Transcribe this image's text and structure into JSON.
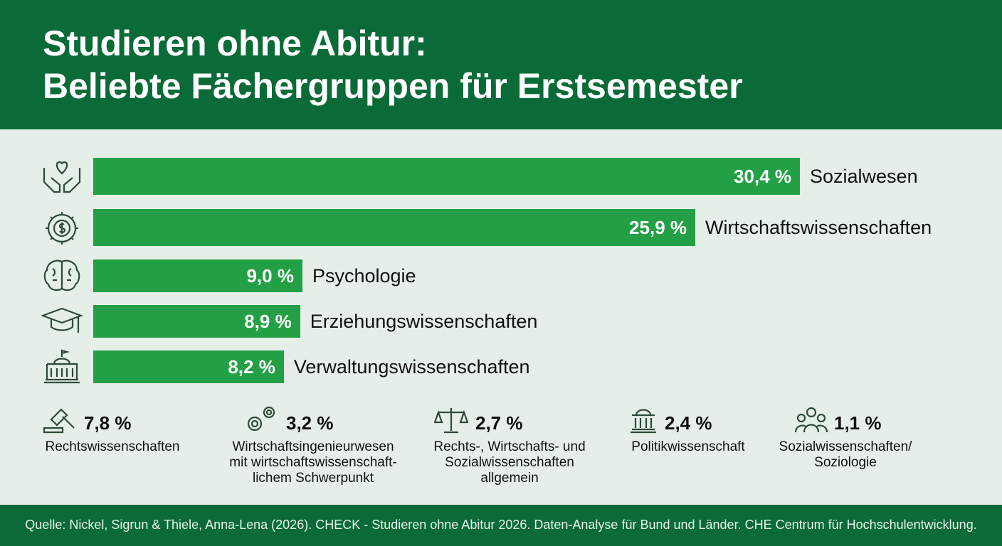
{
  "chart_data": [
    {
      "type": "bar",
      "title": [
        "Studieren ohne Abitur:",
        "Beliebte Fächergruppen für Erstsemester"
      ],
      "categories": [
        "Sozialwesen",
        "Wirtschaftswissenschaften",
        "Psychologie",
        "Erziehungswissenschaften",
        "Verwaltungswissenschaften"
      ],
      "values": [
        30.4,
        25.9,
        9.0,
        8.9,
        8.2
      ],
      "value_labels": [
        "30,4 %",
        "25,9 %",
        "9,0 %",
        "8,9 %",
        "8,2 %"
      ],
      "color": "#23a046",
      "source": "Quelle: Nickel, Sigrun & Thiele, Anna-Lena (2026). CHECK - Studieren ohne Abitur 2026. Daten-Analyse für Bund und Länder. CHE Centrum für Hochschulentwicklung."
    },
    {
      "type": "stat",
      "categories": [
        "Rechtswissenschaften",
        "Wirtschaftsingenieurwesen\nmit wirtschaftswissenschaft-\nlichem Schwerpunkt",
        "Rechts-, Wirtschafts- und\nSozialwissenschaften\nallgemein",
        "Politikwissenschaft",
        "Sozialwissenschaften/\nSoziologie"
      ],
      "values": [
        7.8,
        3.2,
        2.7,
        2.4,
        1.1
      ],
      "value_labels": [
        "7,8 %",
        "3,2 %",
        "2,7 %",
        "2,4 %",
        "1,1 %"
      ]
    }
  ]
}
